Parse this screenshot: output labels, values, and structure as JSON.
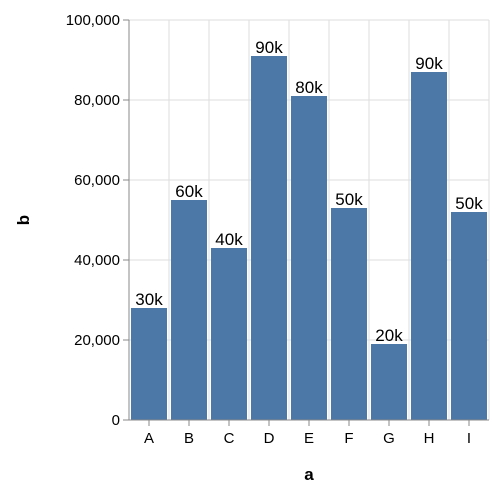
{
  "chart_data": {
    "type": "bar",
    "title": "",
    "xlabel": "a",
    "ylabel": "b",
    "categories": [
      "A",
      "B",
      "C",
      "D",
      "E",
      "F",
      "G",
      "H",
      "I"
    ],
    "values": [
      28000,
      55000,
      43000,
      91000,
      81000,
      53000,
      19000,
      87000,
      52000
    ],
    "data_labels": [
      "30k",
      "60k",
      "40k",
      "90k",
      "80k",
      "50k",
      "20k",
      "90k",
      "50k"
    ],
    "ylim": [
      0,
      100000
    ],
    "yticks": [
      0,
      20000,
      40000,
      60000,
      80000,
      100000
    ],
    "ytick_labels": [
      "0",
      "20,000",
      "40,000",
      "60,000",
      "80,000",
      "100,000"
    ],
    "grid": true,
    "bar_color": "#4c78a8",
    "grid_color": "#dddddd",
    "axis_color": "#888888"
  }
}
